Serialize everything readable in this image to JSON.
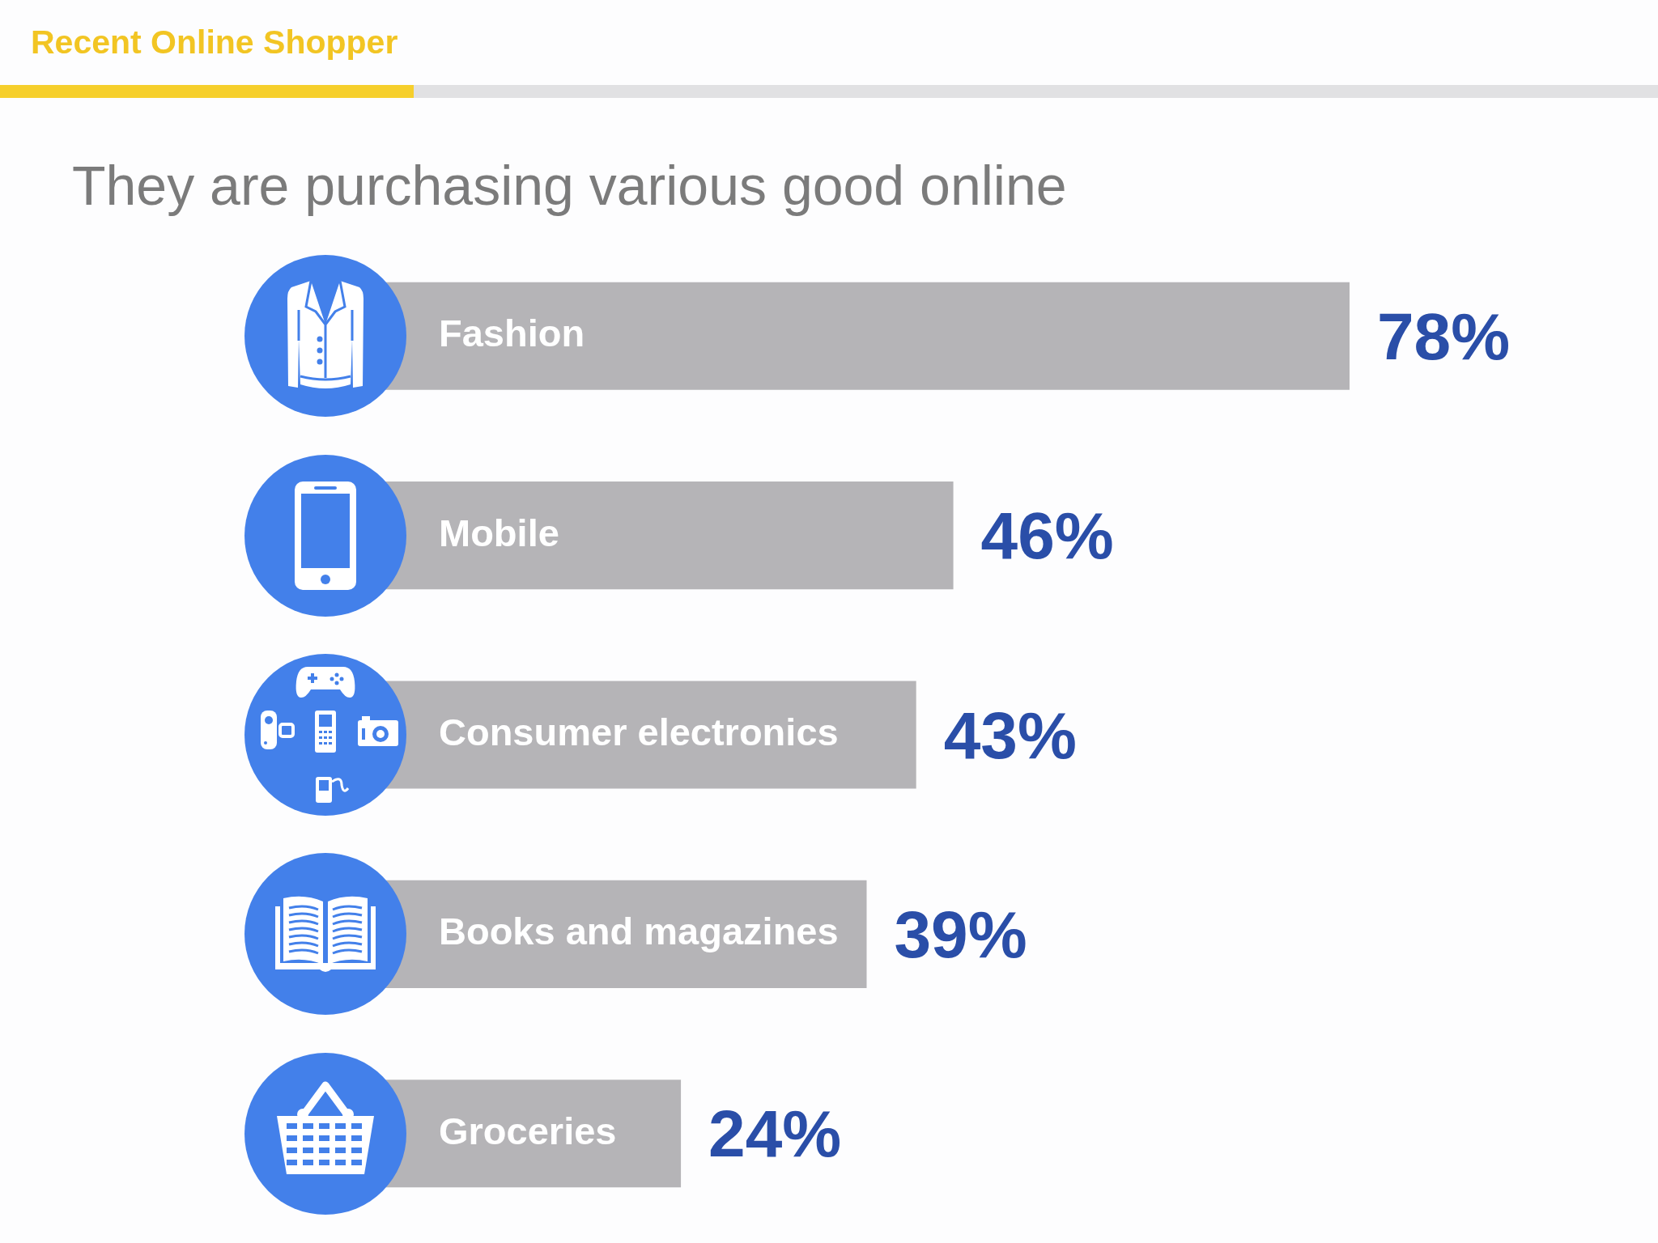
{
  "chart_data": {
    "type": "bar",
    "orientation": "horizontal",
    "title": "Recent Online Shopper",
    "subtitle": "They are purchasing various good online",
    "categories": [
      "Fashion",
      "Mobile",
      "Consumer electronics",
      "Books and magazines",
      "Groceries"
    ],
    "values": [
      78,
      46,
      43,
      39,
      24
    ],
    "value_labels": [
      "78%",
      "46%",
      "43%",
      "39%",
      "24%"
    ],
    "color": "#b5b4b7",
    "tick_labels": "y"
  }
}
